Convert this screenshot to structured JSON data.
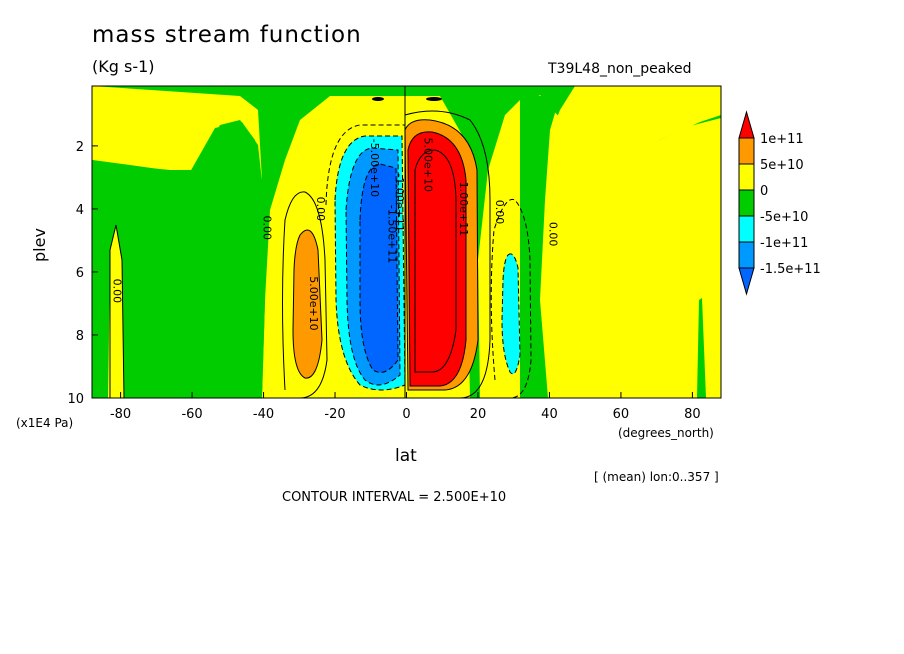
{
  "chart_data": {
    "type": "contour",
    "title": "mass stream function",
    "units": "(Kg s-1)",
    "run_label": "T39L48_non_peaked",
    "xlabel": "lat",
    "x_units": "(degrees_north)",
    "ylabel": "plev",
    "y_units": "(x1E4 Pa)",
    "xlim": [
      -88,
      88
    ],
    "ylim": [
      10,
      0.1
    ],
    "x_ticks": [
      -80,
      -60,
      -40,
      -20,
      0,
      20,
      40,
      60,
      80
    ],
    "y_ticks": [
      2,
      4,
      6,
      8,
      10
    ],
    "contour_interval": "CONTOUR INTERVAL = 2.500E+10",
    "mean_note": "[ (mean) lon:0..357 ]",
    "legend": {
      "labels": [
        "1e+11",
        "5e+10",
        "0",
        "-5e+10",
        "-1e+11",
        "-1.5e+11"
      ],
      "colors": [
        "#ff0000",
        "#ff9900",
        "#ffff00",
        "#00cc00",
        "#00ffff",
        "#0099ff",
        "#0066ff"
      ]
    },
    "contour_labels": [
      {
        "text": "0.00",
        "lat": -40,
        "plev": 4.6
      },
      {
        "text": "0.00",
        "lat": -25,
        "plev": 4.0
      },
      {
        "text": "-5.00e+10",
        "lat": -10,
        "plev": 2.7
      },
      {
        "text": "-1.00e+11",
        "lat": -3,
        "plev": 3.8
      },
      {
        "text": "-1.50e+11",
        "lat": -5,
        "plev": 4.8
      },
      {
        "text": "5.00e+10",
        "lat": 5,
        "plev": 2.6
      },
      {
        "text": "1.00e+11",
        "lat": 15,
        "plev": 4.0
      },
      {
        "text": "0.00",
        "lat": 25,
        "plev": 4.1
      },
      {
        "text": "0.00",
        "lat": 40,
        "plev": 4.8
      },
      {
        "text": "0.00",
        "lat": -82,
        "plev": 6.6
      },
      {
        "text": "5.00e+10",
        "lat": -27,
        "plev": 7.0
      }
    ],
    "extrema": {
      "southern_cell_min": -150000000000.0,
      "northern_cell_max": 100000000000.0
    }
  }
}
